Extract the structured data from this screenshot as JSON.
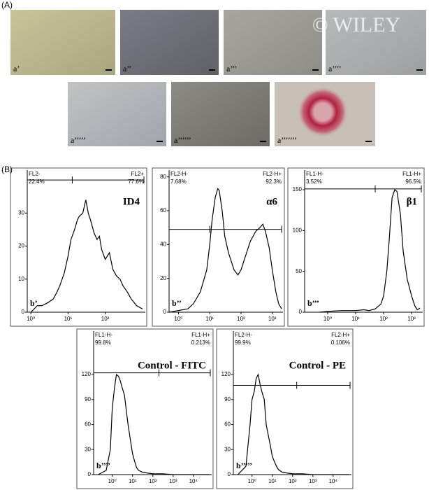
{
  "figure": {
    "panel_a_label": "(A)",
    "panel_b_label": "(B)",
    "watermark": "© WILEY",
    "images": [
      {
        "label": "a’"
      },
      {
        "label": "a’’"
      },
      {
        "label": "a’’’"
      },
      {
        "label": "a’’’’"
      },
      {
        "label": "a’’’’’"
      },
      {
        "label": "a’’’’’’"
      },
      {
        "label": "a’’’’’’’"
      }
    ]
  },
  "chart_data": [
    {
      "type": "line",
      "log_x": true,
      "color": "#000000",
      "x": [
        1,
        1.5,
        2,
        3,
        4,
        5,
        6,
        8,
        10,
        12,
        15,
        18,
        20,
        25,
        30,
        35,
        40,
        50,
        60,
        70,
        80,
        100,
        130,
        160,
        200,
        250,
        300,
        400,
        500,
        700,
        1000
      ],
      "values": [
        0,
        2,
        2,
        3,
        4,
        6,
        8,
        12,
        17,
        22,
        25,
        28,
        29,
        30,
        34,
        30,
        28,
        24,
        22,
        23,
        19,
        16,
        18,
        13,
        11,
        10,
        8,
        6,
        4,
        2,
        1
      ],
      "xlim": [
        0.8,
        1200
      ],
      "ylim": [
        0,
        43
      ],
      "xticks": [
        {
          "value": 1,
          "label": "10⁰"
        },
        {
          "value": 10,
          "label": "10¹"
        },
        {
          "value": 100,
          "label": "10²"
        }
      ],
      "yticks": [
        0,
        10,
        20,
        30
      ],
      "gate_y": 40,
      "gate_x": 13,
      "gate_left_label": "FL2-",
      "gate_left_value": "22.4%",
      "gate_right_label": "FL2+",
      "gate_right_value": "77.6%",
      "marker": "ID4",
      "sublabel": "b’"
    },
    {
      "type": "line",
      "log_x": true,
      "color": "#000000",
      "x": [
        0.5,
        1,
        2,
        3,
        5,
        8,
        10,
        12,
        15,
        18,
        20,
        25,
        30,
        40,
        60,
        80,
        100,
        150,
        200,
        300,
        400,
        500,
        600,
        800,
        1000,
        1300,
        1600,
        2000
      ],
      "values": [
        0,
        1,
        2,
        5,
        12,
        25,
        40,
        55,
        68,
        73,
        72,
        60,
        45,
        35,
        25,
        22,
        25,
        35,
        42,
        48,
        50,
        52,
        48,
        38,
        25,
        12,
        5,
        2
      ],
      "xlim": [
        0.5,
        2200
      ],
      "ylim": [
        0,
        84
      ],
      "xticks": [
        {
          "value": 1,
          "label": "10⁰"
        },
        {
          "value": 10,
          "label": "10¹"
        },
        {
          "value": 100,
          "label": "10²"
        },
        {
          "value": 1000,
          "label": "10³"
        }
      ],
      "yticks": [
        0,
        20,
        40,
        60,
        80
      ],
      "gate_y": 49,
      "gate_x": 10,
      "gate_left_label": "FL2-H-",
      "gate_left_value": "7.68%",
      "gate_right_label": "FL2-H+",
      "gate_right_value": "92.3%",
      "marker": "α6",
      "sublabel": "b’’"
    },
    {
      "type": "line",
      "log_x": true,
      "color": "#000000",
      "x": [
        0.5,
        1,
        3,
        10,
        20,
        30,
        50,
        80,
        100,
        130,
        160,
        200,
        250,
        300,
        400,
        500,
        700,
        1000,
        1300,
        1600,
        2000
      ],
      "values": [
        0,
        1,
        2,
        2,
        3,
        2,
        4,
        10,
        20,
        50,
        90,
        140,
        150,
        148,
        120,
        75,
        40,
        20,
        8,
        3,
        5
      ],
      "xlim": [
        0.15,
        2500
      ],
      "ylim": [
        0,
        174
      ],
      "xticks": [
        {
          "value": 1,
          "label": "10⁰"
        },
        {
          "value": 10,
          "label": "10¹"
        },
        {
          "value": 100,
          "label": "10²"
        },
        {
          "value": 1000,
          "label": "10³"
        }
      ],
      "yticks": [
        0,
        50,
        100,
        150
      ],
      "gate_y": 151,
      "gate_x": 50,
      "gate_left_label": "FL1-H-",
      "gate_left_value": "3.52%",
      "gate_right_label": "FL1-H+",
      "gate_right_value": "96.5%",
      "marker": "β1",
      "sublabel": "b’’’"
    },
    {
      "type": "line",
      "log_x": true,
      "color": "#000000",
      "x": [
        0.2,
        0.5,
        0.8,
        1,
        1.3,
        1.6,
        2,
        2.5,
        3,
        4,
        5,
        6,
        8,
        10,
        13,
        16,
        20,
        30,
        50,
        100,
        300,
        1000,
        10000,
        60000
      ],
      "values": [
        0,
        5,
        30,
        80,
        105,
        120,
        118,
        112,
        105,
        95,
        75,
        60,
        40,
        25,
        15,
        8,
        5,
        3,
        2,
        1,
        1,
        0,
        0,
        0
      ],
      "xlim": [
        0.12,
        80000
      ],
      "ylim": [
        0,
        172
      ],
      "xticks": [
        {
          "value": 1,
          "label": "10⁰"
        },
        {
          "value": 10,
          "label": "10¹"
        },
        {
          "value": 100,
          "label": "10²"
        },
        {
          "value": 1000,
          "label": "10³"
        },
        {
          "value": 10000,
          "label": "10⁴"
        }
      ],
      "yticks": [
        0,
        30,
        60,
        90,
        120
      ],
      "gate_y": 122,
      "gate_x": 200,
      "gate_left_label": "FL1-H-",
      "gate_left_value": "99.8%",
      "gate_right_label": "FL1-H+",
      "gate_right_value": "0.213%",
      "marker": "Control - FITC",
      "sublabel": "b’’’’"
    },
    {
      "type": "line",
      "log_x": true,
      "color": "#000000",
      "x": [
        0.2,
        0.5,
        0.8,
        1,
        1.3,
        1.6,
        2,
        2.5,
        3,
        4,
        5,
        6,
        8,
        10,
        13,
        16,
        20,
        30,
        50,
        100,
        300,
        1000,
        10000,
        60000
      ],
      "values": [
        0,
        10,
        60,
        90,
        100,
        115,
        120,
        108,
        100,
        90,
        60,
        50,
        35,
        22,
        15,
        10,
        6,
        3,
        2,
        1,
        1,
        0,
        0,
        0
      ],
      "xlim": [
        0.12,
        80000
      ],
      "ylim": [
        0,
        172
      ],
      "xticks": [
        {
          "value": 1,
          "label": "10⁰"
        },
        {
          "value": 10,
          "label": "10¹"
        },
        {
          "value": 100,
          "label": "10²"
        },
        {
          "value": 1000,
          "label": "10³"
        },
        {
          "value": 10000,
          "label": "10⁴"
        }
      ],
      "yticks": [
        0,
        30,
        60,
        90,
        120
      ],
      "gate_y": 107,
      "gate_x": 160,
      "gate_left_label": "FL2-H-",
      "gate_left_value": "99.9%",
      "gate_right_label": "FL2-H+",
      "gate_right_value": "0.106%",
      "marker": "Control - PE",
      "sublabel": "b’’’’’"
    }
  ]
}
